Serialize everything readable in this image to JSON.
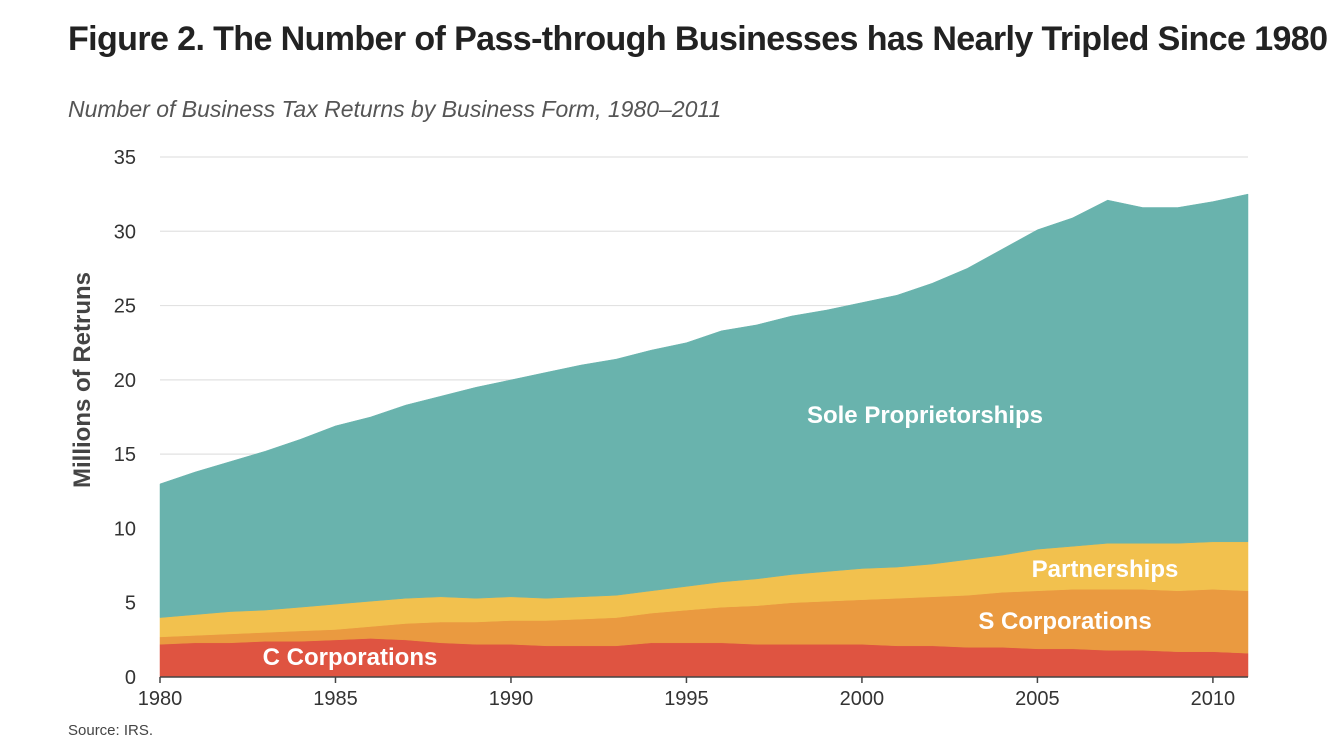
{
  "figure": {
    "title": "Figure 2. The Number of Pass-through Businesses has Nearly Tripled Since 1980",
    "subtitle": "Number of Business Tax Returns by Business Form, 1980–2011",
    "source": "Source: IRS."
  },
  "chart_data": {
    "type": "area",
    "stacked": true,
    "title": "Figure 2. The Number of Pass-through Businesses has Nearly Tripled Since 1980",
    "subtitle": "Number of Business Tax Returns by Business Form, 1980–2011",
    "xlabel": "",
    "ylabel": "Millions of Retruns",
    "xlim": [
      1980,
      2011
    ],
    "ylim": [
      0,
      35
    ],
    "xticks": [
      1980,
      1985,
      1990,
      1995,
      2000,
      2005,
      2010
    ],
    "yticks": [
      0,
      5,
      10,
      15,
      20,
      25,
      30,
      35
    ],
    "grid": "horizontal",
    "x": [
      1980,
      1981,
      1982,
      1983,
      1984,
      1985,
      1986,
      1987,
      1988,
      1989,
      1990,
      1991,
      1992,
      1993,
      1994,
      1995,
      1996,
      1997,
      1998,
      1999,
      2000,
      2001,
      2002,
      2003,
      2004,
      2005,
      2006,
      2007,
      2008,
      2009,
      2010,
      2011
    ],
    "series": [
      {
        "name": "C Corporations",
        "color": "#df5441",
        "values": [
          2.2,
          2.3,
          2.3,
          2.4,
          2.4,
          2.5,
          2.6,
          2.5,
          2.3,
          2.2,
          2.2,
          2.1,
          2.1,
          2.1,
          2.3,
          2.3,
          2.3,
          2.2,
          2.2,
          2.2,
          2.2,
          2.1,
          2.1,
          2.0,
          2.0,
          1.9,
          1.9,
          1.8,
          1.8,
          1.7,
          1.7,
          1.6
        ]
      },
      {
        "name": "S Corporations",
        "color": "#ea9a40",
        "values": [
          0.5,
          0.5,
          0.6,
          0.6,
          0.7,
          0.7,
          0.8,
          1.1,
          1.4,
          1.5,
          1.6,
          1.7,
          1.8,
          1.9,
          2.0,
          2.2,
          2.4,
          2.6,
          2.8,
          2.9,
          3.0,
          3.2,
          3.3,
          3.5,
          3.7,
          3.9,
          4.0,
          4.1,
          4.1,
          4.1,
          4.2,
          4.2
        ]
      },
      {
        "name": "Partnerships",
        "color": "#f2c14e",
        "values": [
          1.3,
          1.4,
          1.5,
          1.5,
          1.6,
          1.7,
          1.7,
          1.7,
          1.7,
          1.6,
          1.6,
          1.5,
          1.5,
          1.5,
          1.5,
          1.6,
          1.7,
          1.8,
          1.9,
          2.0,
          2.1,
          2.1,
          2.2,
          2.4,
          2.5,
          2.8,
          2.9,
          3.1,
          3.1,
          3.2,
          3.2,
          3.3
        ]
      },
      {
        "name": "Sole Proprietorships",
        "color": "#69b3ad",
        "values": [
          9.0,
          9.6,
          10.1,
          10.7,
          11.3,
          12.0,
          12.4,
          13.0,
          13.5,
          14.2,
          14.6,
          15.2,
          15.6,
          15.9,
          16.2,
          16.4,
          16.9,
          17.1,
          17.4,
          17.6,
          17.9,
          18.3,
          18.9,
          19.6,
          20.6,
          21.5,
          22.1,
          23.1,
          22.6,
          22.6,
          22.9,
          23.4
        ]
      }
    ],
    "series_labels": [
      "C Corporations",
      "S Corporations",
      "Partnerships",
      "Sole Proprietorships"
    ]
  }
}
